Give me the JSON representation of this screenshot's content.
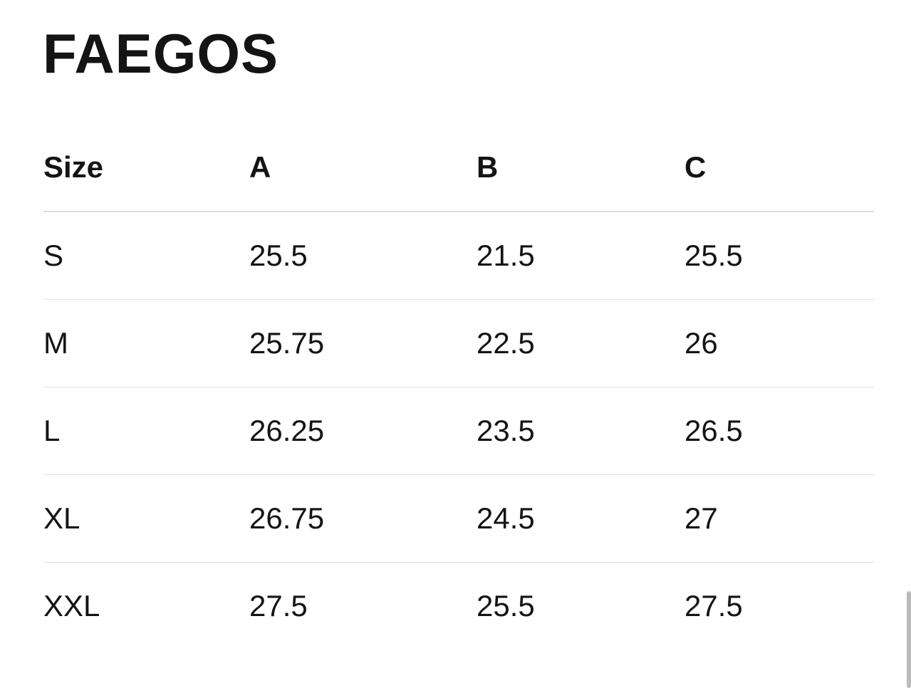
{
  "title": "FAEGOS",
  "table": {
    "header": [
      "Size",
      "A",
      "B",
      "C"
    ],
    "rows": [
      [
        "S",
        "25.5",
        "21.5",
        "25.5"
      ],
      [
        "M",
        "25.75",
        "22.5",
        "26"
      ],
      [
        "L",
        "26.25",
        "23.5",
        "26.5"
      ],
      [
        "XL",
        "26.75",
        "24.5",
        "27"
      ],
      [
        "XXL",
        "27.5",
        "25.5",
        "27.5"
      ]
    ]
  }
}
